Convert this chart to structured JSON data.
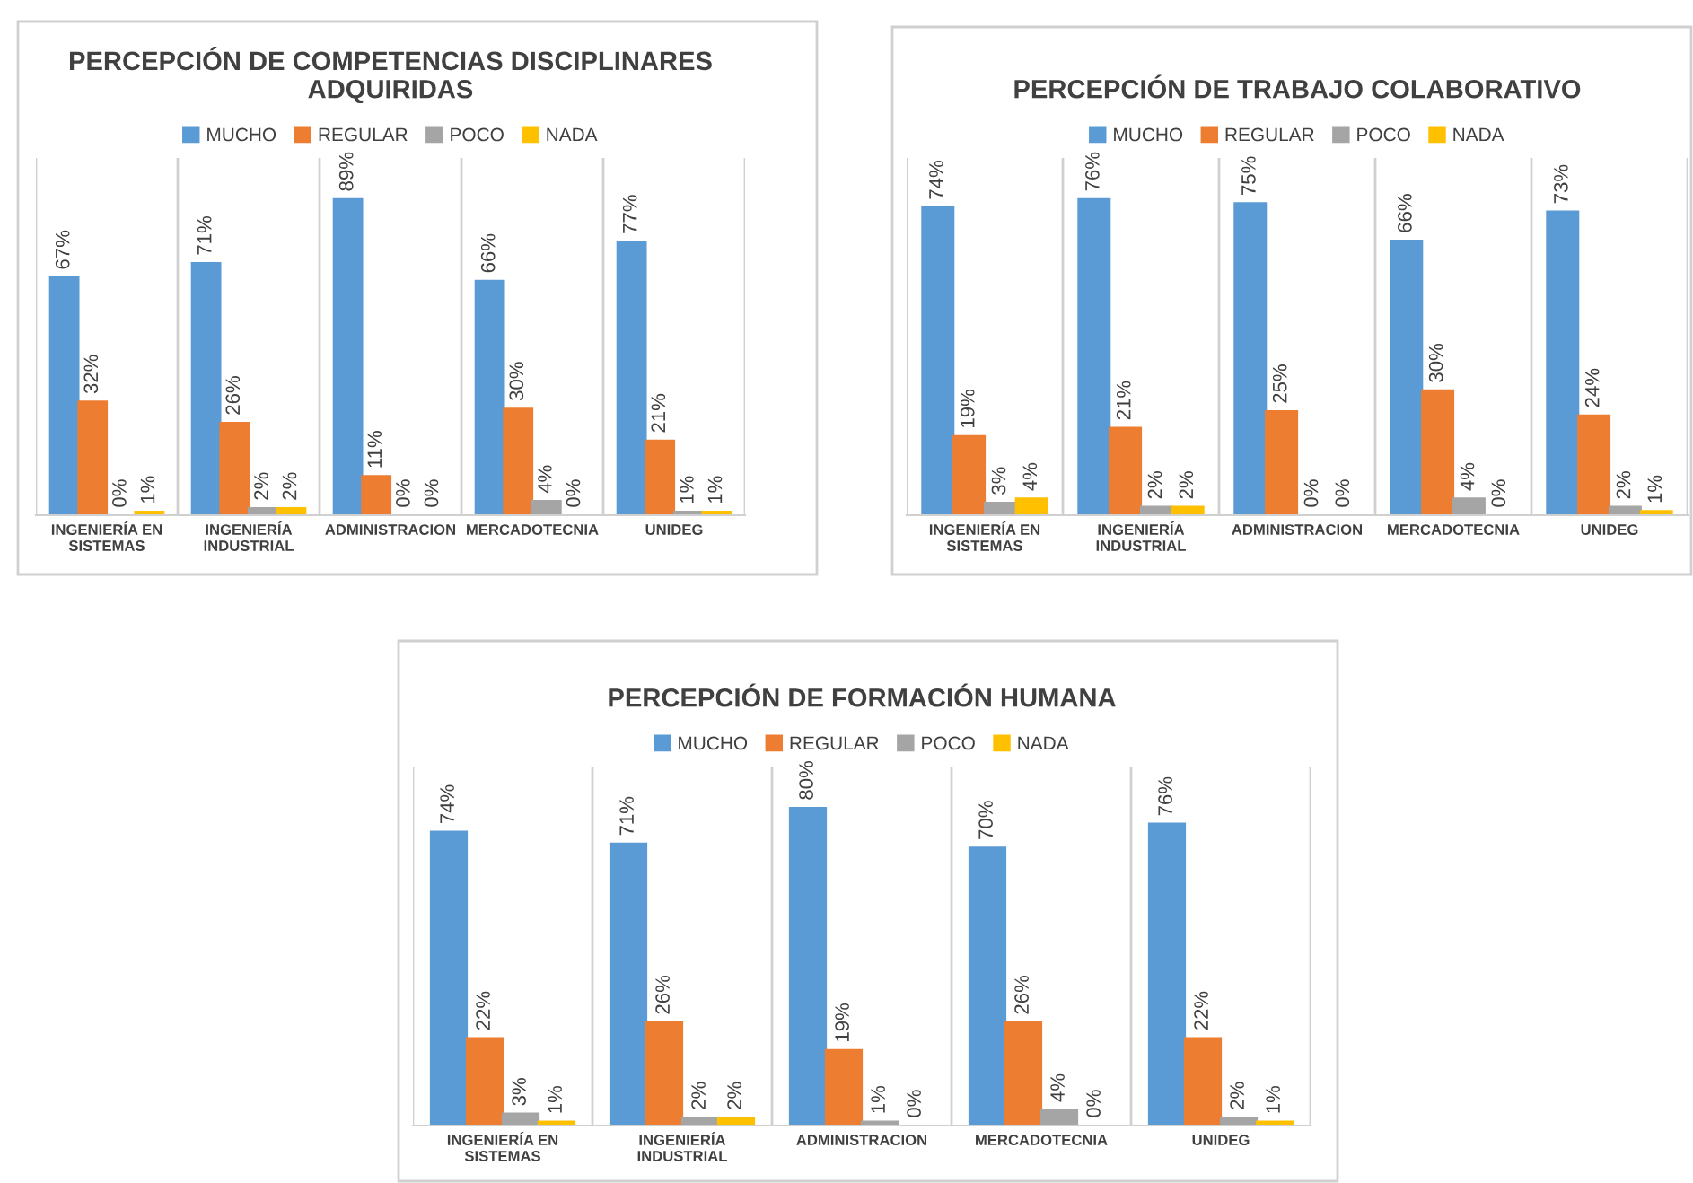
{
  "chart_data": [
    {
      "type": "bar",
      "title": "PERCEPCIÓN DE COMPETENCIAS DISCIPLINARES\nADQUIRIDAS",
      "categories": [
        "INGENIERÍA EN\nSISTEMAS",
        "INGENIERÍA\nINDUSTRIAL",
        "ADMINISTRACION",
        "MERCADOTECNIA",
        "UNIDEG"
      ],
      "legend": "top",
      "grid": "x",
      "series": [
        {
          "name": "MUCHO",
          "color": "#5b9bd5",
          "values": [
            67,
            71,
            89,
            66,
            77
          ],
          "value_labels": [
            "67%",
            "71%",
            "89%",
            "66%",
            "77%"
          ]
        },
        {
          "name": "REGULAR",
          "color": "#ed7d31",
          "values": [
            32,
            26,
            11,
            30,
            21
          ],
          "value_labels": [
            "32%",
            "26%",
            "11%",
            "30%",
            "21%"
          ]
        },
        {
          "name": "POCO",
          "color": "#a5a5a5",
          "values": [
            0,
            2,
            0,
            4,
            1
          ],
          "value_labels": [
            "0%",
            "2%",
            "0%",
            "4%",
            "1%"
          ]
        },
        {
          "name": "NADA",
          "color": "#ffc000",
          "values": [
            1,
            2,
            0,
            0,
            1
          ],
          "value_labels": [
            "1%",
            "2%",
            "0%",
            "0%",
            "1%"
          ]
        }
      ]
    },
    {
      "type": "bar",
      "title": "PERCEPCIÓN DE TRABAJO COLABORATIVO",
      "categories": [
        "INGENIERÍA EN\nSISTEMAS",
        "INGENIERÍA\nINDUSTRIAL",
        "ADMINISTRACION",
        "MERCADOTECNIA",
        "UNIDEG"
      ],
      "legend": "top",
      "grid": "x",
      "series": [
        {
          "name": "MUCHO",
          "color": "#5b9bd5",
          "values": [
            74,
            76,
            75,
            66,
            73
          ],
          "value_labels": [
            "74%",
            "76%",
            "75%",
            "66%",
            "73%"
          ]
        },
        {
          "name": "REGULAR",
          "color": "#ed7d31",
          "values": [
            19,
            21,
            25,
            30,
            24
          ],
          "value_labels": [
            "19%",
            "21%",
            "25%",
            "30%",
            "24%"
          ]
        },
        {
          "name": "POCO",
          "color": "#a5a5a5",
          "values": [
            3,
            2,
            0,
            4,
            2
          ],
          "value_labels": [
            "3%",
            "2%",
            "0%",
            "4%",
            "2%"
          ]
        },
        {
          "name": "NADA",
          "color": "#ffc000",
          "values": [
            4,
            2,
            0,
            0,
            1
          ],
          "value_labels": [
            "4%",
            "2%",
            "0%",
            "0%",
            "1%"
          ]
        }
      ]
    },
    {
      "type": "bar",
      "title": "PERCEPCIÓN DE FORMACIÓN HUMANA",
      "categories": [
        "INGENIERÍA EN\nSISTEMAS",
        "INGENIERÍA\nINDUSTRIAL",
        "ADMINISTRACION",
        "MERCADOTECNIA",
        "UNIDEG"
      ],
      "legend": "top",
      "grid": "x",
      "series": [
        {
          "name": "MUCHO",
          "color": "#5b9bd5",
          "values": [
            74,
            71,
            80,
            70,
            76
          ],
          "value_labels": [
            "74%",
            "71%",
            "80%",
            "70%",
            "76%"
          ]
        },
        {
          "name": "REGULAR",
          "color": "#ed7d31",
          "values": [
            22,
            26,
            19,
            26,
            22
          ],
          "value_labels": [
            "22%",
            "26%",
            "19%",
            "26%",
            "22%"
          ]
        },
        {
          "name": "POCO",
          "color": "#a5a5a5",
          "values": [
            3,
            2,
            1,
            4,
            2
          ],
          "value_labels": [
            "3%",
            "2%",
            "1%",
            "4%",
            "2%"
          ]
        },
        {
          "name": "NADA",
          "color": "#ffc000",
          "values": [
            1,
            2,
            0,
            0,
            1
          ],
          "value_labels": [
            "1%",
            "2%",
            "0%",
            "0%",
            "1%"
          ]
        }
      ]
    }
  ]
}
